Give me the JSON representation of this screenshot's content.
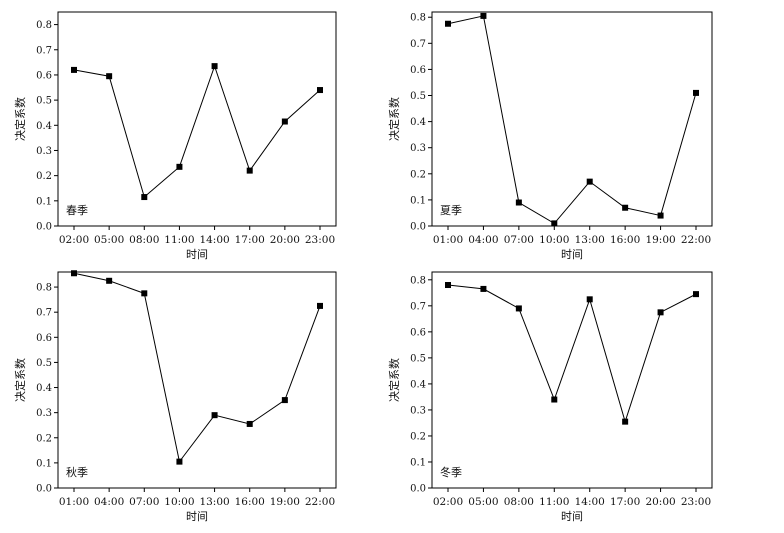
{
  "chart_data": [
    {
      "type": "line",
      "season_label": "春季",
      "xlabel": "时间",
      "ylabel": "决定系数",
      "ylim": [
        0,
        0.85
      ],
      "yticks": [
        "0.0",
        "0.1",
        "0.2",
        "0.3",
        "0.4",
        "0.5",
        "0.6",
        "0.7",
        "0.8"
      ],
      "categories": [
        "02:00",
        "05:00",
        "08:00",
        "11:00",
        "14:00",
        "17:00",
        "20:00",
        "23:00"
      ],
      "values": [
        0.62,
        0.595,
        0.115,
        0.235,
        0.635,
        0.22,
        0.415,
        0.54
      ]
    },
    {
      "type": "line",
      "season_label": "夏季",
      "xlabel": "时间",
      "ylabel": "决定系数",
      "ylim": [
        0,
        0.82
      ],
      "yticks": [
        "0.0",
        "0.1",
        "0.2",
        "0.3",
        "0.4",
        "0.5",
        "0.6",
        "0.7",
        "0.8"
      ],
      "categories": [
        "01:00",
        "04:00",
        "07:00",
        "10:00",
        "13:00",
        "16:00",
        "19:00",
        "22:00"
      ],
      "values": [
        0.775,
        0.805,
        0.09,
        0.01,
        0.17,
        0.07,
        0.04,
        0.51
      ]
    },
    {
      "type": "line",
      "season_label": "秋季",
      "xlabel": "时间",
      "ylabel": "决定系数",
      "ylim": [
        0,
        0.86
      ],
      "yticks": [
        "0.0",
        "0.1",
        "0.2",
        "0.3",
        "0.4",
        "0.5",
        "0.6",
        "0.7",
        "0.8"
      ],
      "categories": [
        "01:00",
        "04:00",
        "07:00",
        "10:00",
        "13:00",
        "16:00",
        "19:00",
        "22:00"
      ],
      "values": [
        0.855,
        0.825,
        0.775,
        0.105,
        0.29,
        0.255,
        0.35,
        0.725
      ]
    },
    {
      "type": "line",
      "season_label": "冬季",
      "xlabel": "时间",
      "ylabel": "决定系数",
      "ylim": [
        0,
        0.83
      ],
      "yticks": [
        "0.0",
        "0.1",
        "0.2",
        "0.3",
        "0.4",
        "0.5",
        "0.6",
        "0.7",
        "0.8"
      ],
      "categories": [
        "02:00",
        "05:00",
        "08:00",
        "11:00",
        "14:00",
        "17:00",
        "20:00",
        "23:00"
      ],
      "values": [
        0.78,
        0.765,
        0.69,
        0.34,
        0.725,
        0.255,
        0.675,
        0.745
      ]
    }
  ]
}
